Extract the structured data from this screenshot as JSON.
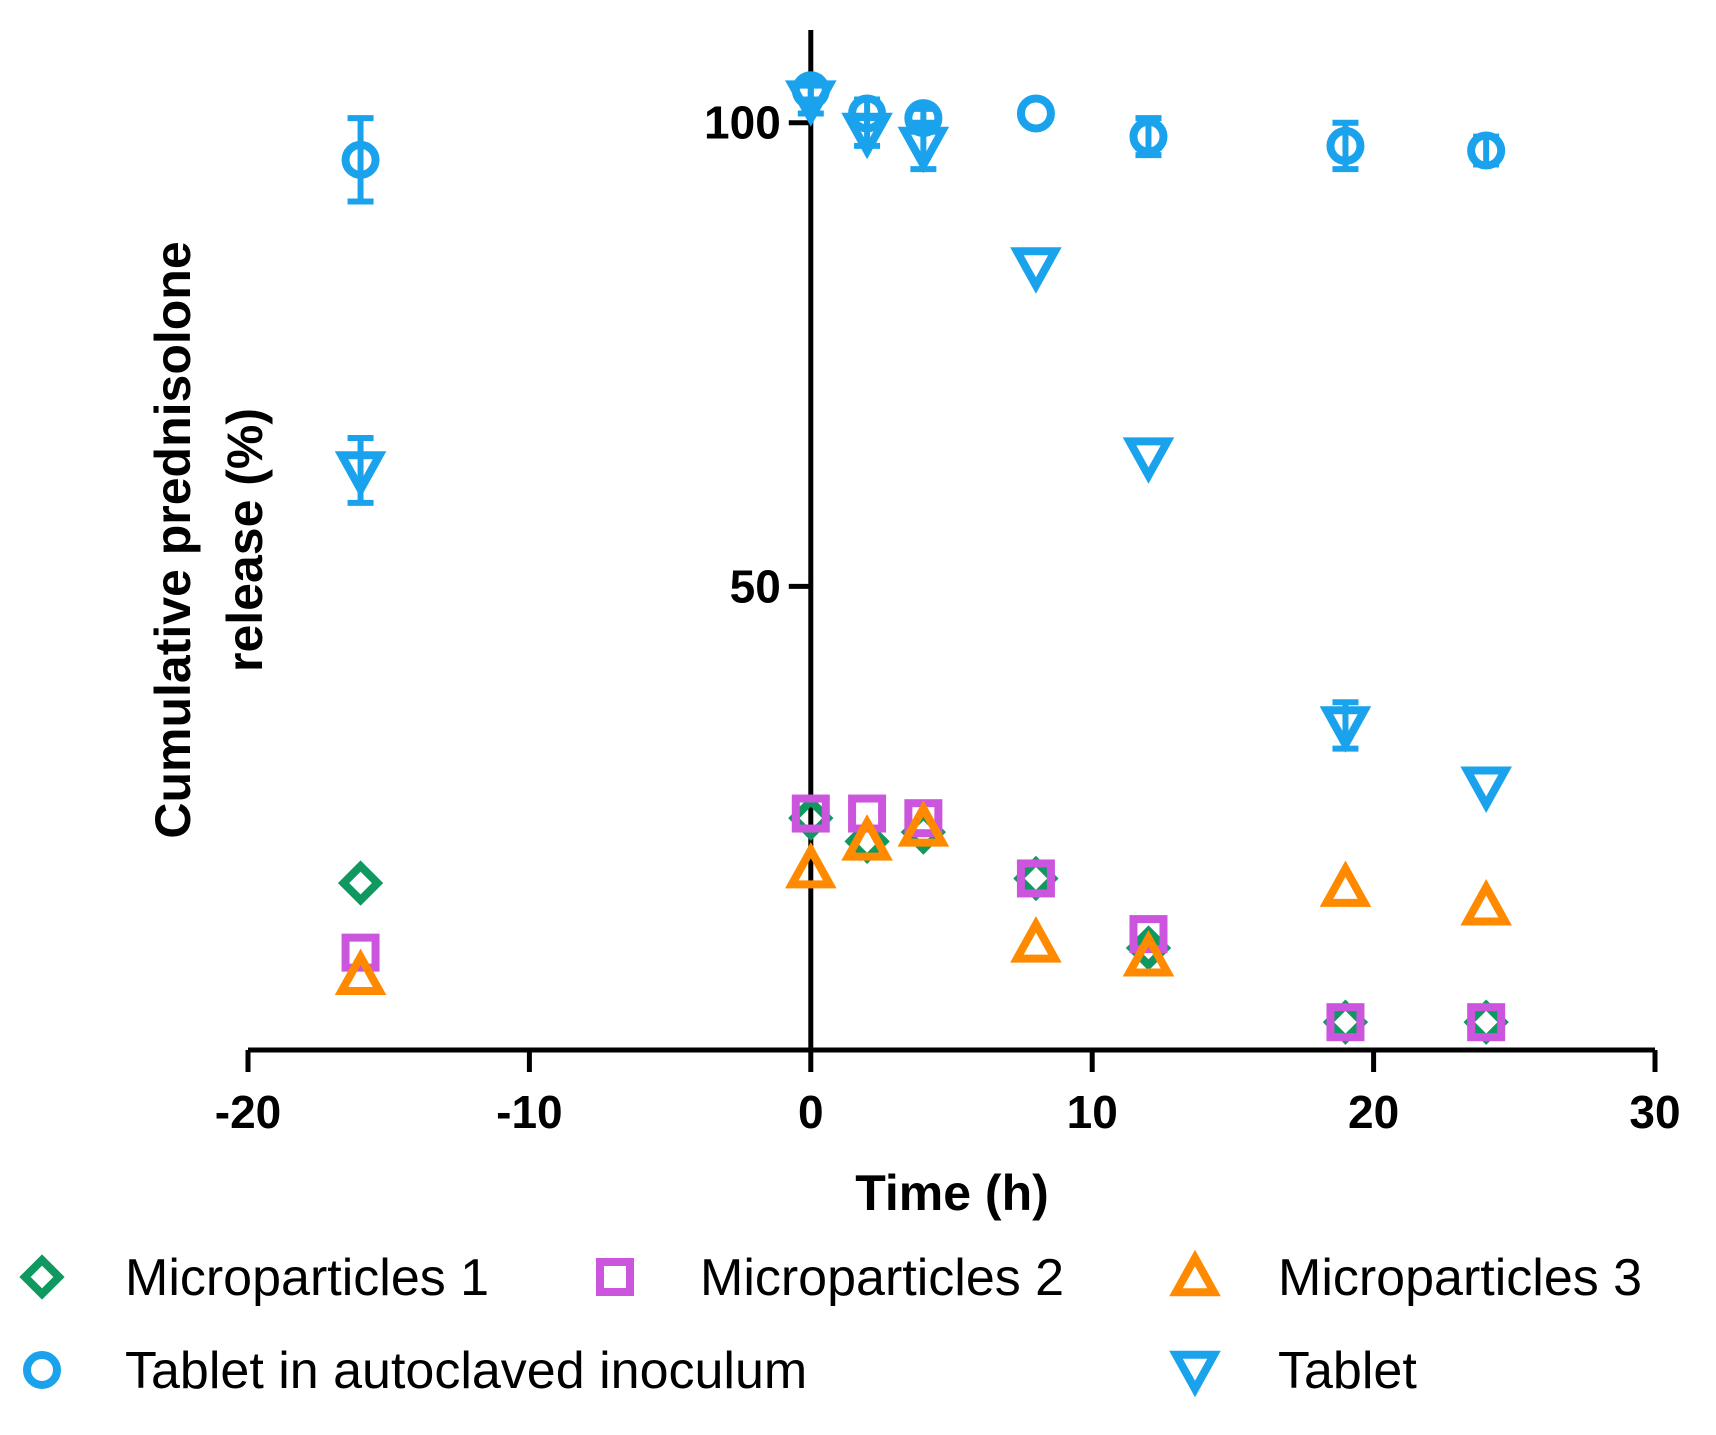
{
  "chart_data": {
    "type": "scatter",
    "xlabel": "Time (h)",
    "ylabel_lines": [
      "Cumulative prednisolone",
      "release (%)"
    ],
    "xlim": [
      -20,
      30
    ],
    "ylim": [
      0,
      110
    ],
    "x_ticks": [
      -20,
      -10,
      0,
      10,
      20,
      30
    ],
    "x_tick_labels": [
      "-20",
      "-10",
      "0",
      "10",
      "20",
      "30"
    ],
    "y_ticks": [
      50,
      100
    ],
    "y_tick_labels": [
      "50",
      "100"
    ],
    "grid": false,
    "legend_position": "bottom",
    "series": [
      {
        "name": "Microparticles 1",
        "marker": "diamond",
        "color": "#0f9960",
        "points": [
          {
            "x": -16,
            "y": 18
          },
          {
            "x": 0,
            "y": 25
          },
          {
            "x": 2,
            "y": 22.5
          },
          {
            "x": 4,
            "y": 23.5
          },
          {
            "x": 8,
            "y": 18.5
          },
          {
            "x": 12,
            "y": 11
          },
          {
            "x": 19,
            "y": 3
          },
          {
            "x": 24,
            "y": 3
          }
        ]
      },
      {
        "name": "Microparticles 2",
        "marker": "square",
        "color": "#cc55dd",
        "points": [
          {
            "x": -16,
            "y": 10.5
          },
          {
            "x": 0,
            "y": 25.5
          },
          {
            "x": 2,
            "y": 25.5
          },
          {
            "x": 4,
            "y": 25
          },
          {
            "x": 8,
            "y": 18.5
          },
          {
            "x": 12,
            "y": 12.5
          },
          {
            "x": 19,
            "y": 3
          },
          {
            "x": 24,
            "y": 3
          }
        ]
      },
      {
        "name": "Microparticles 3",
        "marker": "triangle-up",
        "color": "#ff8a00",
        "points": [
          {
            "x": -16,
            "y": 8
          },
          {
            "x": 0,
            "y": 19.5
          },
          {
            "x": 2,
            "y": 22.5
          },
          {
            "x": 4,
            "y": 24
          },
          {
            "x": 8,
            "y": 11.5
          },
          {
            "x": 12,
            "y": 10
          },
          {
            "x": 19,
            "y": 17.5
          },
          {
            "x": 24,
            "y": 15.5
          }
        ]
      },
      {
        "name": "Tablet in autoclaved inoculum",
        "marker": "circle",
        "color": "#1aa3ec",
        "points": [
          {
            "x": -16,
            "y": 96,
            "err": 4.5
          },
          {
            "x": 0,
            "y": 103.5,
            "err": 1
          },
          {
            "x": 2,
            "y": 101,
            "err": 1.5
          },
          {
            "x": 4,
            "y": 100.5,
            "err": 1
          },
          {
            "x": 8,
            "y": 101,
            "err": 0
          },
          {
            "x": 12,
            "y": 98.5,
            "err": 2
          },
          {
            "x": 19,
            "y": 97.5,
            "err": 2.5
          },
          {
            "x": 24,
            "y": 97,
            "err": 1.5
          }
        ]
      },
      {
        "name": "Tablet",
        "marker": "triangle-down",
        "color": "#1aa3ec",
        "points": [
          {
            "x": -16,
            "y": 62.5,
            "err": 3.5
          },
          {
            "x": 0,
            "y": 102.5,
            "err": 1.5
          },
          {
            "x": 2,
            "y": 99,
            "err": 1.5
          },
          {
            "x": 4,
            "y": 97.5,
            "err": 2.5
          },
          {
            "x": 8,
            "y": 84.5,
            "err": 0
          },
          {
            "x": 12,
            "y": 64,
            "err": 0
          },
          {
            "x": 19,
            "y": 35,
            "err": 2.5
          },
          {
            "x": 24,
            "y": 28.5,
            "err": 0
          }
        ]
      }
    ]
  }
}
